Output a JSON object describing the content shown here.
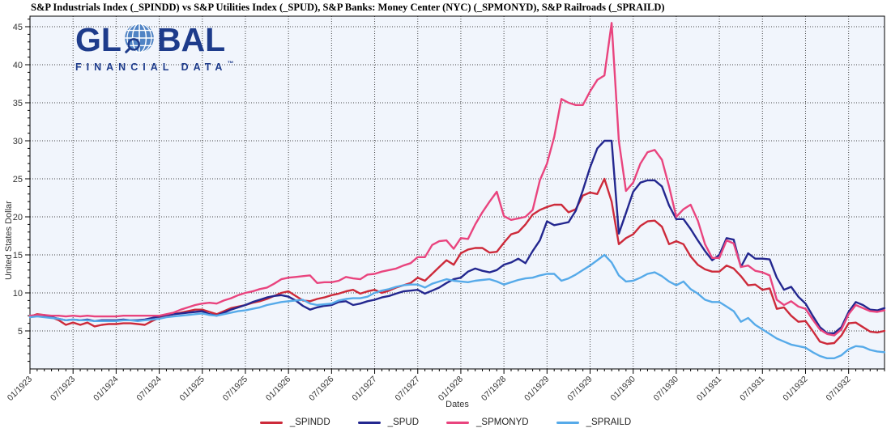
{
  "title": "S&P Industrials Index (_SPINDD)  vs  S&P Utilities Index (_SPUD), S&P Banks: Money Center (NYC) (_SPMONYD), S&P Railroads (_SPRAILD)",
  "logo": {
    "word_start": "GL",
    "word_end": "BAL",
    "subtitle": "FINANCIAL DATA",
    "trademark": "™",
    "text_color": "#1d3b8b",
    "globe_color": "#4f83c4"
  },
  "y_axis": {
    "label": "United States Dollar"
  },
  "x_axis": {
    "label": "Dates"
  },
  "legend": {
    "items": [
      {
        "label": "_SPINDD",
        "color": "#cd2a3a"
      },
      {
        "label": "_SPUD",
        "color": "#23278f"
      },
      {
        "label": "_SPMONYD",
        "color": "#e9447e"
      },
      {
        "label": "_SPRAILD",
        "color": "#56aae9"
      }
    ]
  },
  "chart_data": {
    "type": "line",
    "title": "S&P Industrials Index (_SPINDD)  vs  S&P Utilities Index (_SPUD), S&P Banks: Money Center (NYC) (_SPMONYD), S&P Railroads (_SPRAILD)",
    "xlabel": "Dates",
    "ylabel": "United States Dollar",
    "ylim": [
      0,
      46.4
    ],
    "y_ticks": [
      5,
      10,
      15,
      20,
      25,
      30,
      35,
      40,
      45
    ],
    "grid": true,
    "legend_position": "bottom",
    "x_frequency": "monthly",
    "x_start": "01/1923",
    "x_end": "12/1932",
    "x_tick_labels": [
      "01/1923",
      "07/1923",
      "01/1924",
      "07/1924",
      "01/1925",
      "07/1925",
      "01/1926",
      "07/1926",
      "01/1927",
      "07/1927",
      "01/1928",
      "07/1928",
      "01/1929",
      "07/1929",
      "01/1930",
      "07/1930",
      "01/1931",
      "07/1931",
      "01/1932",
      "07/1932"
    ],
    "series": [
      {
        "name": "_SPINDD",
        "color": "#cd2a3a",
        "values": [
          6.9,
          7.2,
          7.1,
          6.8,
          6.4,
          5.8,
          6.1,
          5.8,
          6.1,
          5.6,
          5.8,
          5.9,
          5.9,
          6.0,
          6.0,
          5.9,
          5.8,
          6.3,
          6.7,
          7.0,
          7.2,
          7.4,
          7.6,
          7.8,
          7.8,
          7.5,
          7.2,
          7.6,
          8.0,
          8.2,
          8.4,
          8.7,
          8.9,
          9.2,
          9.6,
          10.0,
          10.2,
          9.6,
          9.0,
          8.9,
          9.2,
          9.4,
          9.7,
          9.9,
          10.2,
          10.4,
          9.9,
          10.2,
          10.4,
          10.0,
          10.3,
          10.7,
          11.0,
          11.3,
          12.0,
          11.6,
          12.5,
          13.4,
          14.3,
          13.7,
          15.2,
          15.7,
          15.9,
          15.9,
          15.3,
          15.4,
          16.6,
          17.7,
          18.0,
          19.0,
          20.3,
          20.9,
          21.3,
          21.6,
          21.6,
          20.6,
          21.0,
          22.8,
          23.2,
          23.0,
          25.0,
          22.0,
          16.4,
          17.2,
          17.7,
          18.8,
          19.4,
          19.5,
          18.7,
          16.4,
          16.8,
          16.4,
          14.8,
          13.7,
          13.1,
          12.8,
          12.8,
          13.6,
          13.2,
          12.2,
          11.0,
          11.1,
          10.4,
          10.6,
          7.9,
          8.1,
          7.0,
          6.2,
          6.3,
          5.0,
          3.6,
          3.3,
          3.4,
          4.4,
          6.0,
          6.1,
          5.5,
          4.9,
          4.8,
          5.0
        ]
      },
      {
        "name": "_SPUD",
        "color": "#23278f",
        "values": [
          6.9,
          7.0,
          6.9,
          6.8,
          6.6,
          6.4,
          6.5,
          6.4,
          6.5,
          6.3,
          6.4,
          6.4,
          6.4,
          6.5,
          6.4,
          6.4,
          6.5,
          6.7,
          6.9,
          7.1,
          7.2,
          7.3,
          7.4,
          7.5,
          7.6,
          7.2,
          7.0,
          7.4,
          7.8,
          8.1,
          8.4,
          8.8,
          9.1,
          9.4,
          9.6,
          9.7,
          9.5,
          9.0,
          8.3,
          7.8,
          8.1,
          8.3,
          8.4,
          8.8,
          8.9,
          8.4,
          8.6,
          8.9,
          9.1,
          9.4,
          9.6,
          9.9,
          10.2,
          10.3,
          10.4,
          9.9,
          10.3,
          10.7,
          11.3,
          11.8,
          12.0,
          12.8,
          13.2,
          12.9,
          12.7,
          13.0,
          13.7,
          14.0,
          14.5,
          13.9,
          15.5,
          16.9,
          19.4,
          18.9,
          19.1,
          19.3,
          20.8,
          23.5,
          26.5,
          29.0,
          30.0,
          30.0,
          17.8,
          20.5,
          23.3,
          24.5,
          24.8,
          24.8,
          24.0,
          21.5,
          19.7,
          19.7,
          18.4,
          16.9,
          15.5,
          14.3,
          15.0,
          17.2,
          17.0,
          13.4,
          15.2,
          14.5,
          14.5,
          14.4,
          12.0,
          10.4,
          10.8,
          9.5,
          8.6,
          7.0,
          5.5,
          4.7,
          4.7,
          5.5,
          7.5,
          8.8,
          8.4,
          7.8,
          7.7,
          8.0
        ]
      },
      {
        "name": "_SPMONYD",
        "color": "#e9447e",
        "values": [
          7.0,
          7.1,
          7.1,
          7.0,
          7.0,
          6.9,
          7.0,
          6.9,
          7.0,
          6.9,
          6.9,
          6.9,
          6.9,
          7.0,
          7.0,
          7.0,
          7.0,
          7.0,
          7.0,
          7.2,
          7.4,
          7.8,
          8.1,
          8.4,
          8.6,
          8.7,
          8.6,
          9.0,
          9.3,
          9.7,
          10.0,
          10.2,
          10.5,
          10.7,
          11.2,
          11.8,
          12.0,
          12.1,
          12.2,
          12.3,
          11.3,
          11.4,
          11.4,
          11.6,
          12.1,
          11.9,
          11.8,
          12.4,
          12.5,
          12.8,
          13.0,
          13.2,
          13.6,
          13.9,
          14.7,
          14.7,
          16.3,
          16.8,
          16.9,
          15.8,
          17.2,
          17.1,
          19.0,
          20.6,
          22.0,
          23.3,
          20.1,
          19.6,
          19.8,
          20.0,
          20.9,
          24.8,
          27.0,
          30.5,
          35.5,
          35.0,
          34.7,
          34.7,
          36.5,
          38.0,
          38.6,
          45.5,
          30.0,
          23.4,
          24.5,
          27.0,
          28.5,
          28.8,
          27.5,
          24.0,
          20.0,
          21.0,
          21.6,
          19.5,
          16.4,
          14.6,
          14.6,
          16.9,
          16.5,
          13.4,
          13.6,
          12.9,
          12.7,
          12.3,
          9.1,
          8.4,
          8.9,
          8.2,
          7.9,
          6.5,
          5.2,
          4.6,
          4.4,
          5.2,
          7.2,
          8.4,
          8.0,
          7.6,
          7.5,
          7.7
        ]
      },
      {
        "name": "_SPRAILD",
        "color": "#56aae9",
        "values": [
          6.8,
          6.9,
          6.8,
          6.7,
          6.6,
          6.4,
          6.5,
          6.4,
          6.4,
          6.3,
          6.3,
          6.3,
          6.3,
          6.4,
          6.4,
          6.3,
          6.4,
          6.5,
          6.6,
          6.8,
          6.9,
          7.0,
          7.1,
          7.2,
          7.3,
          7.1,
          7.0,
          7.2,
          7.4,
          7.6,
          7.7,
          7.9,
          8.1,
          8.4,
          8.6,
          8.8,
          8.9,
          9.0,
          9.1,
          8.6,
          8.4,
          8.5,
          8.6,
          9.0,
          9.2,
          9.3,
          9.3,
          9.5,
          10.0,
          10.3,
          10.5,
          10.8,
          11.0,
          11.1,
          11.1,
          10.7,
          11.2,
          11.5,
          11.8,
          11.6,
          11.5,
          11.4,
          11.6,
          11.7,
          11.8,
          11.5,
          11.1,
          11.4,
          11.7,
          11.9,
          12.0,
          12.3,
          12.5,
          12.5,
          11.6,
          11.9,
          12.4,
          13.0,
          13.6,
          14.3,
          15.0,
          14.0,
          12.3,
          11.5,
          11.6,
          12.0,
          12.5,
          12.7,
          12.2,
          11.5,
          11.0,
          11.5,
          10.5,
          9.9,
          9.1,
          8.8,
          8.8,
          8.2,
          7.6,
          6.2,
          6.7,
          5.8,
          5.2,
          4.6,
          4.0,
          3.6,
          3.2,
          3.0,
          2.8,
          2.2,
          1.7,
          1.4,
          1.4,
          1.8,
          2.6,
          3.0,
          2.9,
          2.5,
          2.3,
          2.2
        ]
      }
    ]
  }
}
